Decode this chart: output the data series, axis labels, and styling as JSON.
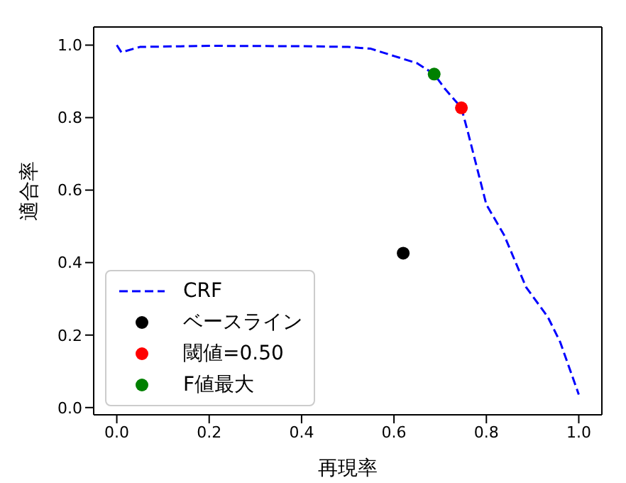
{
  "chart_data": {
    "type": "line",
    "xlabel": "再現率",
    "ylabel": "適合率",
    "xlim": [
      -0.05,
      1.05
    ],
    "ylim": [
      -0.02,
      1.05
    ],
    "xticks": [
      {
        "value": 0,
        "label": "0.0"
      },
      {
        "value": 0.2,
        "label": "0.2"
      },
      {
        "value": 0.4,
        "label": "0.4"
      },
      {
        "value": 0.6,
        "label": "0.6"
      },
      {
        "value": 0.8,
        "label": "0.8"
      },
      {
        "value": 1,
        "label": "1.0"
      }
    ],
    "yticks": [
      {
        "value": 0,
        "label": "0.0"
      },
      {
        "value": 0.2,
        "label": "0.2"
      },
      {
        "value": 0.4,
        "label": "0.4"
      },
      {
        "value": 0.6,
        "label": "0.6"
      },
      {
        "value": 0.8,
        "label": "0.8"
      },
      {
        "value": 1,
        "label": "1.0"
      }
    ],
    "legend": "bottom left",
    "grid": false,
    "series": [
      {
        "name": "CRF",
        "type": "line",
        "line_style": "dashed",
        "marker": "none",
        "color": "#0000ff",
        "x": [
          0,
          0.01,
          0.05,
          0.2,
          0.4,
          0.5,
          0.55,
          0.6,
          0.65,
          0.687,
          0.71,
          0.746,
          0.76,
          0.78,
          0.8,
          0.838,
          0.886,
          0.933,
          0.96,
          1.0
        ],
        "values": [
          1.0,
          0.98,
          0.995,
          0.998,
          0.997,
          0.995,
          0.99,
          0.97,
          0.95,
          0.92,
          0.88,
          0.827,
          0.76,
          0.66,
          0.56,
          0.477,
          0.332,
          0.25,
          0.18,
          0.036
        ]
      },
      {
        "name": "ベースライン",
        "type": "scatter",
        "marker": "circle",
        "color": "#000000",
        "x": [
          0.62
        ],
        "values": [
          0.426
        ]
      },
      {
        "name": "閾値=0.50",
        "type": "scatter",
        "marker": "circle",
        "color": "#ff0000",
        "x": [
          0.746
        ],
        "values": [
          0.827
        ]
      },
      {
        "name": "F値最大",
        "type": "scatter",
        "marker": "circle",
        "color": "#008000",
        "x": [
          0.687
        ],
        "values": [
          0.92
        ]
      }
    ]
  }
}
